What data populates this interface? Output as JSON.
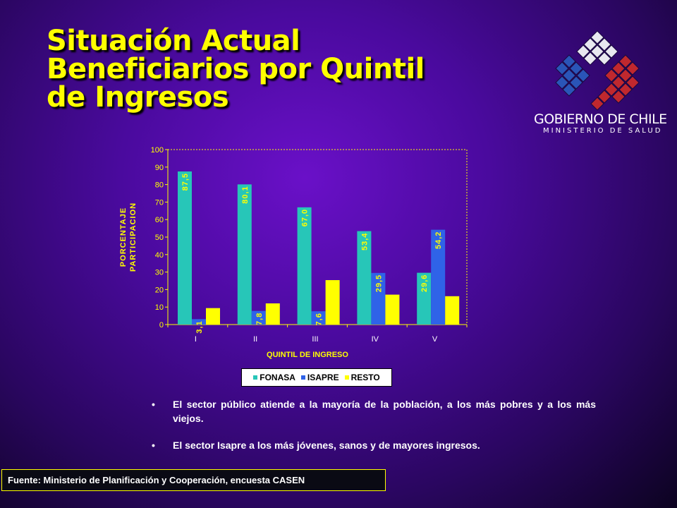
{
  "slide": {
    "title_lines": [
      "Situación Actual",
      "Beneficiarios por Quintil",
      "de Ingresos"
    ],
    "logo": {
      "line1": "GOBIERNO DE CHILE",
      "line2": "MINISTERIO DE SALUD",
      "colors": {
        "blue": "#2a55b8",
        "red": "#c0282e",
        "white": "#e8e8f0"
      }
    },
    "bullets": [
      "El sector público atiende a la mayoría de la población, a los más pobres y a los más viejos.",
      "El sector Isapre a los más jóvenes, sanos y de mayores ingresos."
    ],
    "bullet_symbol": "•",
    "source": "Fuente: Ministerio de Planificación y Cooperación, encuesta CASEN"
  },
  "chart_data": {
    "type": "bar",
    "categories": [
      "I",
      "II",
      "III",
      "IV",
      "V"
    ],
    "series": [
      {
        "name": "FONASA",
        "color": "#27c6b8",
        "values": [
          87.5,
          80.1,
          67.0,
          53.4,
          29.6
        ],
        "labels": [
          "87,5",
          "80,1",
          "67,0",
          "53,4",
          "29,6"
        ]
      },
      {
        "name": "ISAPRE",
        "color": "#2f63e8",
        "values": [
          3.1,
          7.8,
          7.6,
          29.5,
          54.2
        ],
        "labels": [
          "3,1",
          "7,8",
          "7,6",
          "29,5",
          "54,2"
        ]
      },
      {
        "name": "RESTO",
        "color": "#ffff00",
        "values": [
          9.4,
          12.1,
          25.4,
          17.1,
          16.2
        ],
        "labels": [
          "9,4",
          "12,1",
          "25,4",
          "17,1",
          "16,2"
        ]
      }
    ],
    "xlabel": "QUINTIL DE INGRESO",
    "ylabel_lines": [
      "PORCENTAJE",
      "PARTICIPACION"
    ],
    "ylim": [
      0,
      100
    ],
    "yticks": [
      0,
      10,
      20,
      30,
      40,
      50,
      60,
      70,
      80,
      90,
      100
    ],
    "grid": false,
    "legend_position": "bottom",
    "label_color": "#ffff00",
    "axis_color": "#ffff00"
  }
}
